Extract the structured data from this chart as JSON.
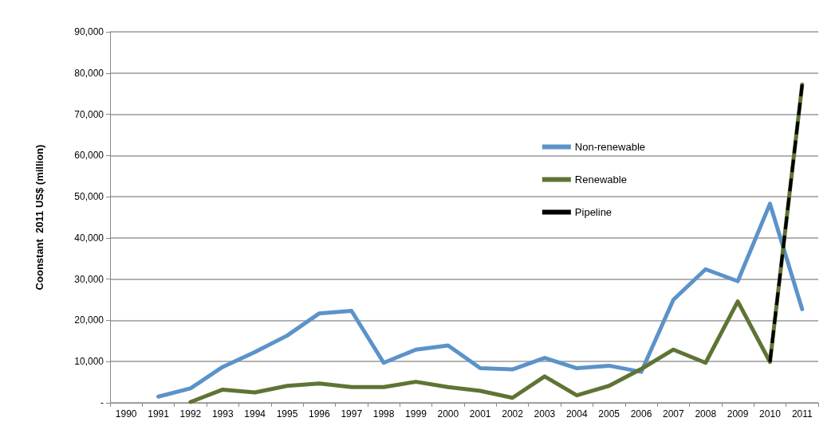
{
  "chart_data": {
    "type": "line",
    "ylabel": "Coonstant  2011 US$ (million)",
    "categories": [
      "1990",
      "1991",
      "1992",
      "1993",
      "1994",
      "1995",
      "1996",
      "1997",
      "1998",
      "1999",
      "2000",
      "2001",
      "2002",
      "2003",
      "2004",
      "2005",
      "2006",
      "2007",
      "2008",
      "2009",
      "2010",
      "2011"
    ],
    "series": [
      {
        "name": "Non-renewable",
        "color": "#5b93c9",
        "line_style": "solid",
        "values": [
          null,
          1500,
          3500,
          8700,
          12300,
          16300,
          21700,
          22300,
          9700,
          12900,
          13900,
          8400,
          8100,
          10900,
          8400,
          9000,
          7500,
          25000,
          32400,
          29500,
          48300,
          22700
        ]
      },
      {
        "name": "Renewable",
        "color": "#5e7434",
        "line_style": "solid",
        "values": [
          null,
          null,
          200,
          3200,
          2500,
          4100,
          4700,
          3800,
          3800,
          5100,
          3800,
          2900,
          1200,
          6400,
          1800,
          4100,
          8200,
          12900,
          9700,
          24600,
          9900,
          77200
        ]
      },
      {
        "name": "Pipeline",
        "color": "#000000",
        "line_style": "dashed",
        "values": [
          null,
          null,
          null,
          null,
          null,
          null,
          null,
          null,
          null,
          null,
          null,
          null,
          null,
          null,
          null,
          null,
          null,
          null,
          null,
          null,
          9900,
          77200
        ]
      }
    ],
    "ylim": [
      0,
      90000
    ],
    "yticks": [
      {
        "value": 0,
        "label": "-"
      },
      {
        "value": 10000,
        "label": "10,000"
      },
      {
        "value": 20000,
        "label": "20,000"
      },
      {
        "value": 30000,
        "label": "30,000"
      },
      {
        "value": 40000,
        "label": "40,000"
      },
      {
        "value": 50000,
        "label": "50,000"
      },
      {
        "value": 60000,
        "label": "60,000"
      },
      {
        "value": 70000,
        "label": "70,000"
      },
      {
        "value": 80000,
        "label": "80,000"
      },
      {
        "value": 90000,
        "label": "90,000"
      }
    ],
    "grid": "y",
    "legend": "right",
    "marker": "none"
  }
}
